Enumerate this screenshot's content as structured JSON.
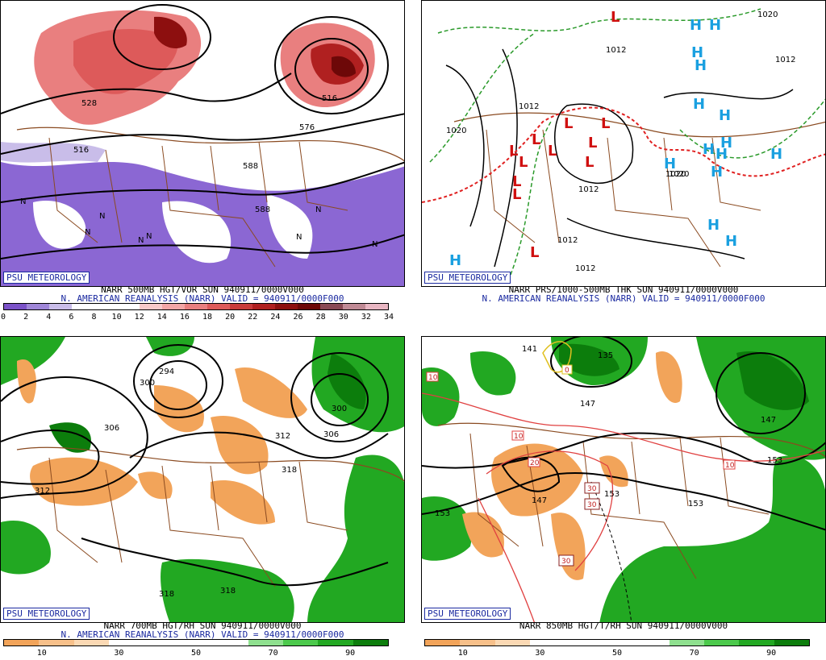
{
  "panels": [
    {
      "id": "vor",
      "badge": "PSU METEOROLOGY",
      "title": "NARR 500MB HGT/VOR SUN 940911/0000V000",
      "subtitle": "N. AMERICAN REANALYSIS (NARR) VALID = 940911/0000F000",
      "scale_colors": [
        "#7b52c8",
        "#9f86d8",
        "#c9bde9",
        "#ffffff",
        "#ffffff",
        "#ffffff",
        "#f7c9c9",
        "#f3a6a6",
        "#e97f7f",
        "#dd5a5a",
        "#c93b3b",
        "#b02020",
        "#8d0f0f",
        "#6d0808",
        "#8a4a55",
        "#c08a95",
        "#e8b6c2"
      ],
      "scale_labels": [
        "0",
        "2",
        "4",
        "6",
        "8",
        "10",
        "12",
        "14",
        "16",
        "18",
        "20",
        "22",
        "24",
        "26",
        "28",
        "30",
        "32",
        "34"
      ],
      "contour_labels": [
        "516",
        "588",
        "588",
        "576",
        "516",
        "528"
      ],
      "shading_labels": [
        "N",
        "N",
        "N",
        "N",
        "N",
        "N",
        "N",
        "N"
      ]
    },
    {
      "id": "prs",
      "badge": "PSU METEOROLOGY",
      "title": "NARR PRS/1000-500MB THK SUN 940911/0000V000",
      "subtitle": "N. AMERICAN REANALYSIS (NARR) VALID = 940911/0000F000",
      "highs": [
        "H",
        "H",
        "H",
        "H",
        "H",
        "H",
        "H",
        "H",
        "H",
        "H",
        "H",
        "H",
        "H",
        "H",
        "H"
      ],
      "lows": [
        "L",
        "L",
        "L",
        "L",
        "L",
        "L",
        "L",
        "L",
        "L",
        "L",
        "L",
        "L"
      ],
      "contour_labels": [
        "1020",
        "1012",
        "1020",
        "1012",
        "1012",
        "1012",
        "1020",
        "1012",
        "1012",
        "1020"
      ]
    },
    {
      "id": "rh700",
      "badge": "PSU METEOROLOGY",
      "title": "NARR 700MB HGT/RH SUN 940911/0000V000",
      "subtitle": "N. AMERICAN REANALYSIS (NARR) VALID = 940911/0000F000",
      "scale_colors": [
        "#f2a45a",
        "#f7c08a",
        "#fbd9b4",
        "#ffffff",
        "#ffffff",
        "#ffffff",
        "#ffffff",
        "#8fe08f",
        "#4cc94c",
        "#22a822",
        "#0c7d0c"
      ],
      "scale_labels": [
        "10",
        "30",
        "50",
        "70",
        "90"
      ],
      "contour_labels": [
        "300",
        "294",
        "306",
        "312",
        "312",
        "306",
        "300",
        "318",
        "318",
        "318"
      ]
    },
    {
      "id": "t850",
      "badge": "PSU METEOROLOGY",
      "title": "NARR 850MB HGT/T/RH SUN 940911/0000V000",
      "subtitle": "",
      "scale_colors": [
        "#f2a45a",
        "#f7c08a",
        "#fbd9b4",
        "#ffffff",
        "#ffffff",
        "#ffffff",
        "#ffffff",
        "#8fe08f",
        "#4cc94c",
        "#22a822",
        "#0c7d0c"
      ],
      "scale_labels": [
        "10",
        "30",
        "50",
        "70",
        "90"
      ],
      "contour_labels": [
        "141",
        "135",
        "147",
        "147",
        "153",
        "153",
        "153",
        "147",
        "153"
      ],
      "temp_labels": [
        "10",
        "10",
        "20",
        "30",
        "30",
        "30",
        "10",
        "0"
      ]
    }
  ]
}
